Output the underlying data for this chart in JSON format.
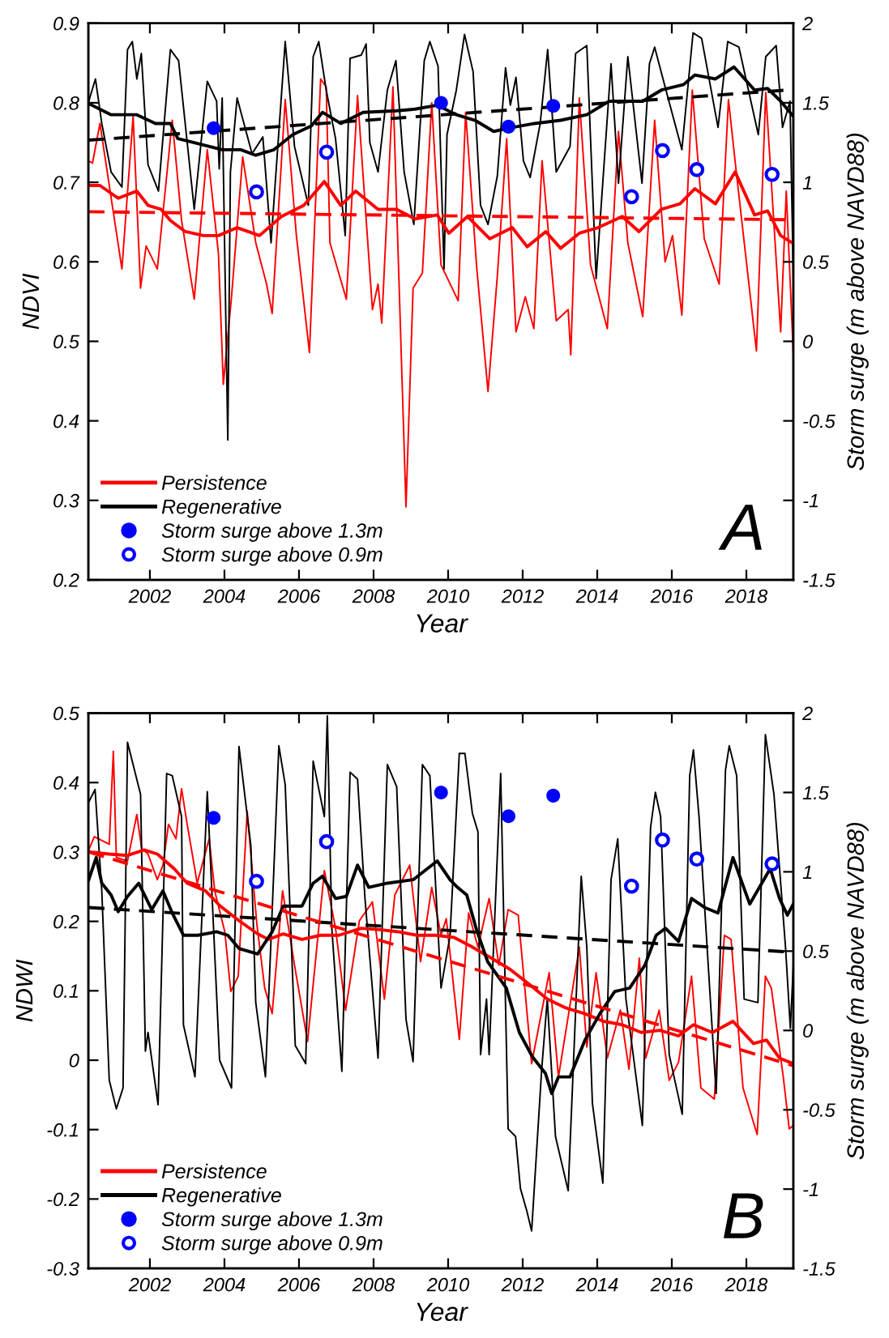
{
  "chart_data": [
    {
      "type": "line",
      "xlabel": "Year",
      "ylabel": "NDVI",
      "y2label": "Storm surge (m above NAVD88)",
      "xlim": [
        2000.35,
        2019.26
      ],
      "xticks": [
        2002,
        2004,
        2006,
        2008,
        2010,
        2012,
        2014,
        2016,
        2018
      ],
      "ylim": [
        0.2,
        0.9
      ],
      "yticks": [
        0.2,
        0.3,
        0.4,
        0.5,
        0.6,
        0.7,
        0.8,
        0.9
      ],
      "y2lim": [
        -1.5,
        2
      ],
      "y2ticks": [
        -1.5,
        -1,
        -0.5,
        0,
        0.5,
        1,
        1.5,
        2
      ],
      "legend": "lower left",
      "annotations": [
        "A"
      ],
      "series": [
        {
          "name": "Persistence",
          "color": "#ff0000",
          "line_style": "solid",
          "x": [
            2000.36,
            2000.46,
            2000.66,
            2001.25,
            2001.55,
            2001.75,
            2001.9,
            2002.2,
            2002.6,
            2002.85,
            2003.19,
            2003.54,
            2003.84,
            2003.97,
            2004.19,
            2004.49,
            2004.84,
            2005.13,
            2005.28,
            2005.63,
            2005.93,
            2006.28,
            2006.58,
            2006.73,
            2006.83,
            2007.27,
            2007.57,
            2007.97,
            2008.12,
            2008.22,
            2008.52,
            2008.87,
            2009.06,
            2009.31,
            2009.56,
            2009.81,
            2010.27,
            2010.47,
            2010.77,
            2011.07,
            2011.32,
            2011.57,
            2011.82,
            2012.07,
            2012.3,
            2012.52,
            2012.9,
            2013.22,
            2013.29,
            2013.52,
            2013.82,
            2014.27,
            2014.57,
            2014.82,
            2015.22,
            2015.54,
            2015.82,
            2016.02,
            2016.27,
            2016.55,
            2016.87,
            2017.27,
            2017.52,
            2017.72,
            2018.27,
            2018.52,
            2018.92,
            2019.07,
            2019.26
          ],
          "values": [
            0.727,
            0.724,
            0.774,
            0.591,
            0.783,
            0.567,
            0.62,
            0.591,
            0.778,
            0.652,
            0.553,
            0.741,
            0.61,
            0.446,
            0.556,
            0.732,
            0.624,
            0.572,
            0.535,
            0.804,
            0.633,
            0.486,
            0.83,
            0.82,
            0.624,
            0.553,
            0.809,
            0.54,
            0.572,
            0.523,
            0.82,
            0.292,
            0.567,
            0.586,
            0.8,
            0.596,
            0.551,
            0.788,
            0.591,
            0.437,
            0.582,
            0.755,
            0.512,
            0.556,
            0.516,
            0.727,
            0.526,
            0.54,
            0.483,
            0.806,
            0.596,
            0.516,
            0.764,
            0.624,
            0.531,
            0.778,
            0.6,
            0.633,
            0.533,
            0.816,
            0.629,
            0.572,
            0.804,
            0.717,
            0.488,
            0.813,
            0.512,
            0.689,
            0.483
          ]
        },
        {
          "name": "Regenerative",
          "color": "#000000",
          "line_style": "solid",
          "x": [
            2000.36,
            2000.54,
            2000.71,
            2000.96,
            2001.25,
            2001.4,
            2001.53,
            2001.65,
            2001.77,
            2001.95,
            2002.23,
            2002.55,
            2002.77,
            2003.19,
            2003.54,
            2003.79,
            2003.86,
            2003.94,
            2004.09,
            2004.16,
            2004.34,
            2004.74,
            2005.03,
            2005.25,
            2005.63,
            2005.88,
            2006.25,
            2006.38,
            2006.53,
            2006.73,
            2006.98,
            2007.24,
            2007.37,
            2007.67,
            2007.8,
            2007.9,
            2008.12,
            2008.37,
            2008.6,
            2008.82,
            2009.08,
            2009.36,
            2009.51,
            2009.73,
            2009.89,
            2009.97,
            2010.22,
            2010.44,
            2010.67,
            2010.87,
            2011.07,
            2011.32,
            2011.54,
            2011.67,
            2011.82,
            2012.02,
            2012.2,
            2012.47,
            2012.67,
            2012.9,
            2013.27,
            2013.42,
            2013.72,
            2013.97,
            2014.37,
            2014.57,
            2014.82,
            2015.2,
            2015.4,
            2015.54,
            2015.82,
            2016.27,
            2016.57,
            2016.8,
            2017.24,
            2017.5,
            2017.8,
            2018.32,
            2018.52,
            2018.8,
            2018.97,
            2019.17,
            2019.26
          ],
          "values": [
            0.802,
            0.83,
            0.774,
            0.713,
            0.694,
            0.867,
            0.877,
            0.83,
            0.862,
            0.722,
            0.689,
            0.867,
            0.853,
            0.666,
            0.827,
            0.802,
            0.717,
            0.806,
            0.376,
            0.713,
            0.806,
            0.736,
            0.757,
            0.624,
            0.877,
            0.745,
            0.671,
            0.858,
            0.877,
            0.816,
            0.755,
            0.633,
            0.856,
            0.86,
            0.874,
            0.75,
            0.713,
            0.816,
            0.853,
            0.713,
            0.647,
            0.853,
            0.877,
            0.846,
            0.591,
            0.76,
            0.816,
            0.886,
            0.839,
            0.671,
            0.647,
            0.708,
            0.844,
            0.797,
            0.832,
            0.727,
            0.706,
            0.774,
            0.867,
            0.713,
            0.745,
            0.862,
            0.872,
            0.579,
            0.849,
            0.699,
            0.858,
            0.699,
            0.849,
            0.87,
            0.82,
            0.741,
            0.888,
            0.881,
            0.769,
            0.877,
            0.87,
            0.76,
            0.858,
            0.872,
            0.769,
            0.802,
            0.577
          ]
        },
        {
          "color": "#ff0000",
          "line_style": "solid",
          "x": [
            2000.36,
            2000.66,
            2001.15,
            2001.65,
            2001.95,
            2002.3,
            2002.55,
            2002.95,
            2003.44,
            2003.84,
            2004.34,
            2004.94,
            2005.53,
            2006.13,
            2006.68,
            2007.12,
            2007.52,
            2008.12,
            2008.62,
            2009.11,
            2009.71,
            2010.02,
            2010.52,
            2011.12,
            2011.72,
            2012.12,
            2012.62,
            2013.02,
            2013.52,
            2014.02,
            2014.67,
            2015.12,
            2015.72,
            2016.22,
            2016.62,
            2017.17,
            2017.7,
            2018.22,
            2018.57,
            2018.92,
            2019.26
          ],
          "values": [
            0.696,
            0.696,
            0.68,
            0.689,
            0.671,
            0.666,
            0.652,
            0.638,
            0.633,
            0.633,
            0.643,
            0.633,
            0.657,
            0.671,
            0.701,
            0.671,
            0.689,
            0.666,
            0.666,
            0.654,
            0.659,
            0.636,
            0.657,
            0.629,
            0.643,
            0.619,
            0.638,
            0.617,
            0.636,
            0.643,
            0.657,
            0.638,
            0.666,
            0.673,
            0.692,
            0.673,
            0.713,
            0.659,
            0.664,
            0.633,
            0.623
          ]
        },
        {
          "color": "#000000",
          "line_style": "solid",
          "x": [
            2000.36,
            2000.96,
            2001.65,
            2002.15,
            2002.55,
            2002.75,
            2003.34,
            2003.94,
            2004.44,
            2004.84,
            2005.33,
            2005.83,
            2006.33,
            2006.63,
            2007.12,
            2007.72,
            2008.62,
            2009.11,
            2009.71,
            2010.22,
            2010.72,
            2011.22,
            2011.72,
            2012.32,
            2013.02,
            2013.72,
            2014.32,
            2015.22,
            2015.72,
            2016.32,
            2016.62,
            2017.17,
            2017.67,
            2018.22,
            2018.57,
            2018.92,
            2019.26
          ],
          "values": [
            0.799,
            0.785,
            0.785,
            0.774,
            0.774,
            0.755,
            0.748,
            0.741,
            0.741,
            0.734,
            0.741,
            0.76,
            0.771,
            0.788,
            0.774,
            0.788,
            0.79,
            0.792,
            0.797,
            0.785,
            0.778,
            0.764,
            0.769,
            0.774,
            0.778,
            0.785,
            0.802,
            0.802,
            0.816,
            0.823,
            0.835,
            0.83,
            0.845,
            0.816,
            0.818,
            0.802,
            0.783
          ]
        },
        {
          "color": "#000000",
          "line_style": "dashed",
          "x": [
            2000.36,
            2019.1
          ],
          "values": [
            0.753,
            0.816
          ]
        },
        {
          "color": "#ff0000",
          "line_style": "dashed",
          "x": [
            2000.36,
            2019.1
          ],
          "values": [
            0.663,
            0.653
          ]
        },
        {
          "name": "Storm surge above 1.3m",
          "type": "scatter",
          "axis": "y2",
          "marker": "circle",
          "color": "#0000ff",
          "x": [
            2003.71,
            2009.81,
            2011.62,
            2012.82
          ],
          "values": [
            1.34,
            1.5,
            1.35,
            1.48
          ]
        },
        {
          "name": "Storm surge above 0.9m",
          "type": "scatter",
          "axis": "y2",
          "marker": "open circle",
          "color": "#0000ff",
          "x": [
            2004.86,
            2006.74,
            2014.92,
            2015.75,
            2016.67,
            2018.69
          ],
          "values": [
            0.94,
            1.19,
            0.91,
            1.2,
            1.08,
            1.05
          ]
        }
      ]
    },
    {
      "type": "line",
      "xlabel": "Year",
      "ylabel": "NDWI",
      "y2label": "Storm surge (m above NAVD88)",
      "xlim": [
        2000.35,
        2019.26
      ],
      "xticks": [
        2002,
        2004,
        2006,
        2008,
        2010,
        2012,
        2014,
        2016,
        2018
      ],
      "ylim": [
        -0.3,
        0.5
      ],
      "yticks": [
        -0.3,
        -0.2,
        -0.1,
        0,
        0.1,
        0.2,
        0.3,
        0.4,
        0.5
      ],
      "y2lim": [
        -1.5,
        2
      ],
      "y2ticks": [
        -1.5,
        -1,
        -0.5,
        0,
        0.5,
        1,
        1.5,
        2
      ],
      "legend": "lower left",
      "annotations": [
        "B"
      ],
      "series": [
        {
          "name": "Persistence",
          "color": "#ff0000",
          "line_style": "solid",
          "x": [
            2000.36,
            2000.51,
            2000.73,
            2000.91,
            2001.02,
            2001.1,
            2001.4,
            2001.65,
            2001.78,
            2001.95,
            2002.2,
            2002.35,
            2002.5,
            2002.7,
            2002.85,
            2003.0,
            2003.27,
            2003.59,
            2003.74,
            2004.01,
            2004.17,
            2004.37,
            2004.61,
            2004.87,
            2005.08,
            2005.28,
            2005.56,
            2005.88,
            2006.23,
            2006.68,
            2006.98,
            2007.25,
            2007.62,
            2007.97,
            2008.29,
            2008.57,
            2008.97,
            2009.26,
            2009.56,
            2009.81,
            2009.95,
            2010.3,
            2010.55,
            2010.8,
            2011.1,
            2011.36,
            2011.61,
            2011.88,
            2012.24,
            2012.46,
            2012.71,
            2012.96,
            2013.52,
            2013.72,
            2013.97,
            2014.27,
            2014.62,
            2014.85,
            2015.13,
            2015.3,
            2015.66,
            2015.93,
            2016.18,
            2016.53,
            2016.78,
            2017.14,
            2017.41,
            2017.59,
            2017.91,
            2018.29,
            2018.51,
            2018.67,
            2018.99,
            2019.15,
            2019.26
          ],
          "values": [
            0.303,
            0.322,
            0.316,
            0.311,
            0.445,
            0.292,
            0.287,
            0.354,
            0.305,
            0.297,
            0.26,
            0.281,
            0.34,
            0.319,
            0.391,
            0.34,
            0.255,
            0.319,
            0.244,
            0.185,
            0.099,
            0.121,
            0.359,
            0.196,
            0.104,
            0.067,
            0.244,
            0.137,
            0.027,
            0.273,
            0.19,
            0.072,
            0.201,
            0.228,
            0.088,
            0.238,
            0.281,
            0.142,
            0.249,
            0.18,
            0.204,
            0.03,
            0.212,
            0.163,
            0.233,
            0.137,
            0.217,
            0.209,
            -0.005,
            0.056,
            0.126,
            -0.024,
            0.163,
            0.019,
            0.126,
            0.003,
            0.072,
            -0.013,
            0.147,
            0.003,
            0.072,
            -0.029,
            -0.003,
            0.121,
            -0.04,
            -0.056,
            0.18,
            0.174,
            -0.04,
            -0.107,
            0.121,
            0.104,
            -0.024,
            -0.099,
            -0.094
          ]
        },
        {
          "name": "Regenerative",
          "color": "#000000",
          "line_style": "solid",
          "x": [
            2000.36,
            2000.53,
            2000.71,
            2000.91,
            2001.1,
            2001.28,
            2001.4,
            2001.6,
            2001.75,
            2001.88,
            2001.95,
            2002.22,
            2002.45,
            2002.6,
            2002.85,
            2002.9,
            2003.21,
            2003.54,
            2003.87,
            2004.19,
            2004.39,
            2004.71,
            2004.84,
            2005.1,
            2005.46,
            2005.63,
            2005.9,
            2006.18,
            2006.38,
            2006.68,
            2006.76,
            2006.88,
            2007.15,
            2007.37,
            2007.57,
            2007.77,
            2008.12,
            2008.37,
            2008.62,
            2008.87,
            2009.06,
            2009.31,
            2009.51,
            2009.81,
            2010.05,
            2010.3,
            2010.45,
            2010.65,
            2010.8,
            2010.87,
            2011.03,
            2011.1,
            2011.41,
            2011.61,
            2011.81,
            2011.94,
            2012.11,
            2012.24,
            2012.51,
            2012.66,
            2012.88,
            2013.22,
            2013.57,
            2013.72,
            2013.87,
            2014.15,
            2014.37,
            2014.55,
            2014.77,
            2015.21,
            2015.43,
            2015.56,
            2015.7,
            2015.93,
            2016.28,
            2016.48,
            2016.58,
            2016.73,
            2017.19,
            2017.44,
            2017.54,
            2017.74,
            2017.94,
            2018.31,
            2018.51,
            2018.74,
            2019.05,
            2019.18,
            2019.26
          ],
          "values": [
            0.372,
            0.39,
            0.244,
            -0.029,
            -0.07,
            -0.04,
            0.458,
            0.415,
            0.383,
            0.013,
            0.04,
            -0.064,
            0.413,
            0.41,
            0.351,
            0.051,
            -0.024,
            0.387,
            0.0,
            -0.04,
            0.452,
            0.308,
            0.083,
            -0.024,
            0.453,
            0.397,
            0.021,
            -0.005,
            0.431,
            0.351,
            0.496,
            0.19,
            -0.016,
            0.415,
            0.405,
            0.233,
            0.003,
            0.426,
            0.394,
            0.059,
            -0.002,
            0.426,
            0.41,
            0.104,
            0.179,
            0.442,
            0.442,
            0.356,
            0.329,
            0.008,
            0.088,
            0.008,
            0.413,
            -0.099,
            -0.11,
            -0.185,
            -0.217,
            -0.246,
            -0.013,
            0.088,
            -0.11,
            -0.188,
            0.265,
            0.163,
            -0.062,
            -0.177,
            0.26,
            0.319,
            0.088,
            -0.094,
            0.335,
            0.386,
            0.351,
            0.008,
            -0.078,
            0.41,
            0.447,
            0.351,
            -0.048,
            0.418,
            0.453,
            0.41,
            0.088,
            0.083,
            0.469,
            0.383,
            0.163,
            0.046,
            0.137
          ]
        },
        {
          "color": "#ff0000",
          "line_style": "solid",
          "x": [
            2000.36,
            2000.91,
            2001.4,
            2001.85,
            2002.2,
            2002.65,
            2003.0,
            2003.49,
            2003.89,
            2004.39,
            2004.89,
            2005.18,
            2005.58,
            2006.08,
            2006.58,
            2007.07,
            2007.67,
            2008.17,
            2008.67,
            2009.16,
            2009.66,
            2010.15,
            2010.65,
            2011.16,
            2011.66,
            2012.16,
            2012.66,
            2013.17,
            2013.67,
            2014.17,
            2014.67,
            2015.18,
            2015.68,
            2016.18,
            2016.58,
            2017.09,
            2017.64,
            2018.19,
            2018.54,
            2018.89,
            2019.26
          ],
          "values": [
            0.3,
            0.297,
            0.295,
            0.303,
            0.297,
            0.276,
            0.255,
            0.244,
            0.222,
            0.201,
            0.182,
            0.174,
            0.182,
            0.174,
            0.18,
            0.18,
            0.19,
            0.188,
            0.185,
            0.18,
            0.18,
            0.177,
            0.163,
            0.147,
            0.131,
            0.11,
            0.088,
            0.075,
            0.067,
            0.056,
            0.051,
            0.04,
            0.043,
            0.035,
            0.051,
            0.04,
            0.056,
            0.024,
            0.029,
            0.003,
            -0.005
          ]
        },
        {
          "color": "#000000",
          "line_style": "solid",
          "x": [
            2000.36,
            2000.56,
            2000.71,
            2000.96,
            2001.15,
            2001.4,
            2001.7,
            2002.05,
            2002.35,
            2002.6,
            2002.9,
            2003.29,
            2003.79,
            2004.09,
            2004.39,
            2004.89,
            2005.28,
            2005.58,
            2006.08,
            2006.38,
            2006.63,
            2006.98,
            2007.27,
            2007.57,
            2007.87,
            2008.37,
            2009.06,
            2009.71,
            2010.05,
            2010.25,
            2010.5,
            2010.75,
            2011.06,
            2011.56,
            2011.91,
            2012.26,
            2012.61,
            2012.78,
            2012.96,
            2013.27,
            2013.67,
            2014.07,
            2014.47,
            2014.87,
            2015.28,
            2015.58,
            2015.83,
            2016.18,
            2016.53,
            2016.88,
            2017.24,
            2017.64,
            2018.09,
            2018.64,
            2018.89,
            2019.1,
            2019.26
          ],
          "values": [
            0.26,
            0.292,
            0.255,
            0.238,
            0.214,
            0.236,
            0.255,
            0.217,
            0.244,
            0.212,
            0.18,
            0.18,
            0.185,
            0.18,
            0.161,
            0.153,
            0.185,
            0.222,
            0.222,
            0.255,
            0.265,
            0.233,
            0.236,
            0.281,
            0.249,
            0.255,
            0.26,
            0.287,
            0.26,
            0.249,
            0.238,
            0.19,
            0.142,
            0.104,
            0.04,
            0.005,
            -0.019,
            -0.048,
            -0.024,
            -0.024,
            0.029,
            0.067,
            0.099,
            0.104,
            0.137,
            0.18,
            0.19,
            0.171,
            0.233,
            0.22,
            0.212,
            0.292,
            0.225,
            0.276,
            0.233,
            0.209,
            0.225
          ]
        },
        {
          "color": "#000000",
          "line_style": "dashed",
          "x": [
            2000.36,
            2019.1
          ],
          "values": [
            0.22,
            0.156
          ]
        },
        {
          "color": "#ff0000",
          "line_style": "dashed",
          "x": [
            2000.36,
            2019.26
          ],
          "values": [
            0.3,
            -0.008
          ]
        },
        {
          "name": "Storm surge above 1.3m",
          "type": "scatter",
          "axis": "y2",
          "marker": "circle",
          "color": "#0000ff",
          "x": [
            2003.71,
            2009.81,
            2011.62,
            2012.82
          ],
          "values": [
            1.34,
            1.5,
            1.35,
            1.48
          ]
        },
        {
          "name": "Storm surge above 0.9m",
          "type": "scatter",
          "axis": "y2",
          "marker": "open circle",
          "color": "#0000ff",
          "x": [
            2004.86,
            2006.74,
            2014.92,
            2015.75,
            2016.67,
            2018.69
          ],
          "values": [
            0.94,
            1.19,
            0.91,
            1.2,
            1.08,
            1.05
          ]
        }
      ]
    }
  ]
}
